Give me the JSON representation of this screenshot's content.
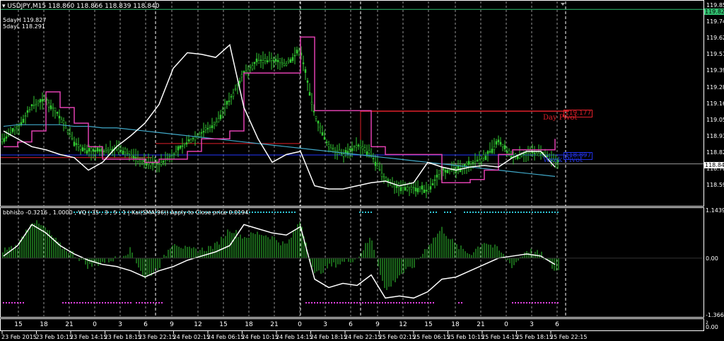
{
  "header": {
    "symbol": "USDJPY,M15",
    "ohlc": "118.860 118.866 118.839 118.840"
  },
  "info": {
    "five_day_high": "5dayH 119.827",
    "five_day_low": "5dayL 118.291"
  },
  "indicator_label": "bbhisto -0.3216 , 1.0000 , VQ |  35 , 3 , 5 , 1  |   Kai(SMA(96)) Apply to Close price 0.0194",
  "price_axis": {
    "ticks": [
      "119.855",
      "119.740",
      "119.625",
      "119.510",
      "119.395",
      "119.280",
      "119.165",
      "119.050",
      "118.935",
      "118.820",
      "118.705",
      "118.590"
    ],
    "high_tag": "119.827",
    "current_tag": "118.840"
  },
  "indicator_axis": {
    "ticks": [
      "1.1439",
      "0.00",
      "-1.3663"
    ]
  },
  "hour_pane_axis": {
    "ticks": [
      "2",
      "0.00"
    ]
  },
  "pivots": {
    "day_pivot_label": "Day Pivot",
    "day_pivot_value": "119.177",
    "week_pivot_label": "Week Pivot",
    "week_pivot_value": "118.897"
  },
  "hour_labels": [
    "15",
    "18",
    "21",
    "0",
    "3",
    "6",
    "9",
    "12",
    "15",
    "18",
    "21",
    "0",
    "3",
    "6",
    "9",
    "12",
    "15",
    "18",
    "21",
    "0",
    "3",
    "6"
  ],
  "date_labels": [
    "23 Feb 2015",
    "23 Feb 10:15",
    "23 Feb 14:15",
    "23 Feb 18:15",
    "23 Feb 22:15",
    "24 Feb 02:15",
    "24 Feb 06:15",
    "24 Feb 10:15",
    "24 Feb 14:15",
    "24 Feb 18:15",
    "24 Feb 22:15",
    "25 Feb 02:15",
    "25 Feb 06:15",
    "25 Feb 10:15",
    "25 Feb 14:15",
    "25 Feb 18:15",
    "25 Feb 22:15"
  ],
  "colors": {
    "candles": "#33cc33",
    "day_pivot": "#e0202a",
    "week_pivot": "#2030e0",
    "step_line": "#e040b0",
    "ma": "#40a8c8",
    "high_line": "#30c070",
    "dots_top": "#30c8d8",
    "dots_bottom": "#e040e0"
  },
  "chart_data": [
    {
      "type": "line",
      "title": "USDJPY,M15",
      "ylim": [
        118.59,
        119.855
      ],
      "series": [
        {
          "values": [
            119.0,
            119.07,
            119.21,
            119.25,
            119.14,
            118.98,
            118.92,
            118.92,
            118.94,
            118.9,
            118.85,
            118.84,
            118.9,
            118.98,
            119.04,
            119.1,
            119.25,
            119.42,
            119.5,
            119.5,
            119.48,
            119.57,
            119.15,
            118.95,
            118.9,
            118.96,
            118.9,
            118.74,
            118.69,
            118.69,
            118.67,
            118.8,
            118.8,
            118.84,
            118.88,
            118.98,
            118.88,
            118.91,
            118.91,
            118.85
          ]
        },
        {
          "values": [
            119.05,
            119.0,
            118.95,
            118.93,
            118.9,
            118.88,
            118.8,
            118.85,
            118.95,
            119.02,
            119.1,
            119.22,
            119.45,
            119.55,
            119.54,
            119.52,
            119.6,
            119.2,
            119.0,
            118.85,
            118.9,
            118.92,
            118.7,
            118.68,
            118.68,
            118.7,
            118.72,
            118.73,
            118.7,
            118.72,
            118.85,
            118.82,
            118.8,
            118.82,
            118.83,
            118.82,
            118.88,
            118.92,
            118.92,
            118.82
          ]
        },
        {
          "values": [
            118.95,
            118.98,
            119.05,
            119.3,
            119.2,
            119.1,
            118.95,
            118.87,
            118.87,
            118.87,
            118.85,
            118.87,
            118.87,
            118.92,
            119.0,
            119.0,
            119.05,
            119.42,
            119.42,
            119.42,
            119.42,
            119.65,
            119.18,
            119.18,
            119.18,
            119.18,
            118.95,
            118.9,
            118.9,
            118.9,
            118.9,
            118.72,
            118.72,
            118.74,
            118.8,
            118.9,
            118.93,
            118.93,
            118.93,
            119.0
          ]
        },
        {
          "values": [
            119.08,
            119.09,
            119.09,
            119.09,
            119.09,
            119.08,
            119.08,
            119.07,
            119.07,
            119.06,
            119.05,
            119.04,
            119.03,
            119.02,
            119.01,
            119.0,
            118.99,
            118.98,
            118.97,
            118.96,
            118.95,
            118.94,
            118.93,
            118.92,
            118.91,
            118.9,
            118.89,
            118.88,
            118.87,
            118.86,
            118.85,
            118.84,
            118.83,
            118.82,
            118.81,
            118.8,
            118.79,
            118.78,
            118.77,
            118.76
          ]
        }
      ]
    },
    {
      "type": "bar",
      "title": "bbhisto",
      "ylim": [
        -1.3663,
        1.1439
      ],
      "series": [
        {
          "values": [
            0.2,
            0.3,
            0.9,
            0.7,
            0.3,
            0.1,
            -0.2,
            -0.1,
            0.0,
            0.2,
            -0.5,
            -0.2,
            0.4,
            0.2,
            0.2,
            0.3,
            0.7,
            0.5,
            0.6,
            0.5,
            0.3,
            0.9,
            -0.4,
            -0.2,
            -0.1,
            0.0,
            0.5,
            -0.8,
            -0.4,
            -0.2,
            0.3,
            0.7,
            0.3,
            0.1,
            0.4,
            0.2,
            -0.2,
            0.2,
            0.1,
            -0.3
          ]
        },
        {
          "values": [
            0.05,
            0.3,
            0.8,
            0.6,
            0.3,
            0.1,
            -0.05,
            -0.15,
            -0.2,
            -0.3,
            -0.45,
            -0.3,
            -0.2,
            -0.05,
            0.05,
            0.15,
            0.3,
            0.8,
            0.7,
            0.6,
            0.55,
            0.75,
            -0.5,
            -0.7,
            -0.6,
            -0.65,
            -0.4,
            -0.95,
            -0.9,
            -0.95,
            -0.8,
            -0.5,
            -0.45,
            -0.3,
            -0.15,
            0.0,
            0.05,
            0.1,
            0.05,
            -0.15
          ]
        }
      ]
    }
  ]
}
